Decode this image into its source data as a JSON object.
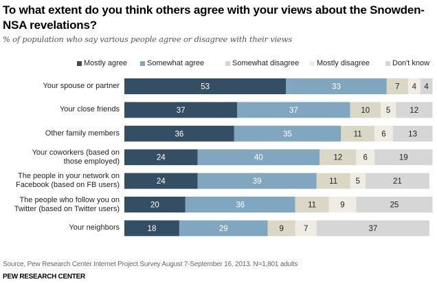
{
  "chart_data": {
    "type": "bar",
    "orientation": "horizontal",
    "stacked": true,
    "title": "To what extent do you think others agree with your views about the Snowden-NSA revelations?",
    "subtitle": "% of population who say various people agree or disagree with their views",
    "xlabel": "",
    "ylabel": "",
    "xlim": [
      0,
      100
    ],
    "grid": false,
    "legend_position": "top-right",
    "categories": [
      "Your spouse or partner",
      "Your close friends",
      "Other family members",
      "Your coworkers (based on\nthose employed)",
      "The people in your network on\nFacebook (based on FB users)",
      "The people who follow you on\nTwitter (based on Twitter users)",
      "Your neighbors"
    ],
    "series": [
      {
        "name": "Mostly agree",
        "color": "#344f63",
        "label_color": "#ffffff",
        "values": [
          53,
          37,
          36,
          24,
          24,
          20,
          18
        ]
      },
      {
        "name": "Somewhat agree",
        "color": "#81a6c0",
        "label_color": "#ffffff",
        "values": [
          33,
          37,
          35,
          40,
          39,
          36,
          29
        ]
      },
      {
        "name": "Somewhat disagree",
        "color": "#dad7c7",
        "label_color": "#222222",
        "values": [
          7,
          10,
          11,
          12,
          11,
          11,
          9
        ]
      },
      {
        "name": "Mostly disagree",
        "color": "#efece4",
        "label_color": "#222222",
        "values": [
          4,
          5,
          6,
          6,
          5,
          9,
          7
        ]
      },
      {
        "name": "Don't know",
        "color": "#d6d6d6",
        "label_color": "#222222",
        "values": [
          4,
          12,
          13,
          19,
          21,
          25,
          37
        ]
      }
    ]
  },
  "footer": {
    "source": "Source, Pew Research Center Internet Project Survey August 7-September 16, 2013. N=1,801 adults",
    "org": "PEW RESEARCH CENTER"
  }
}
